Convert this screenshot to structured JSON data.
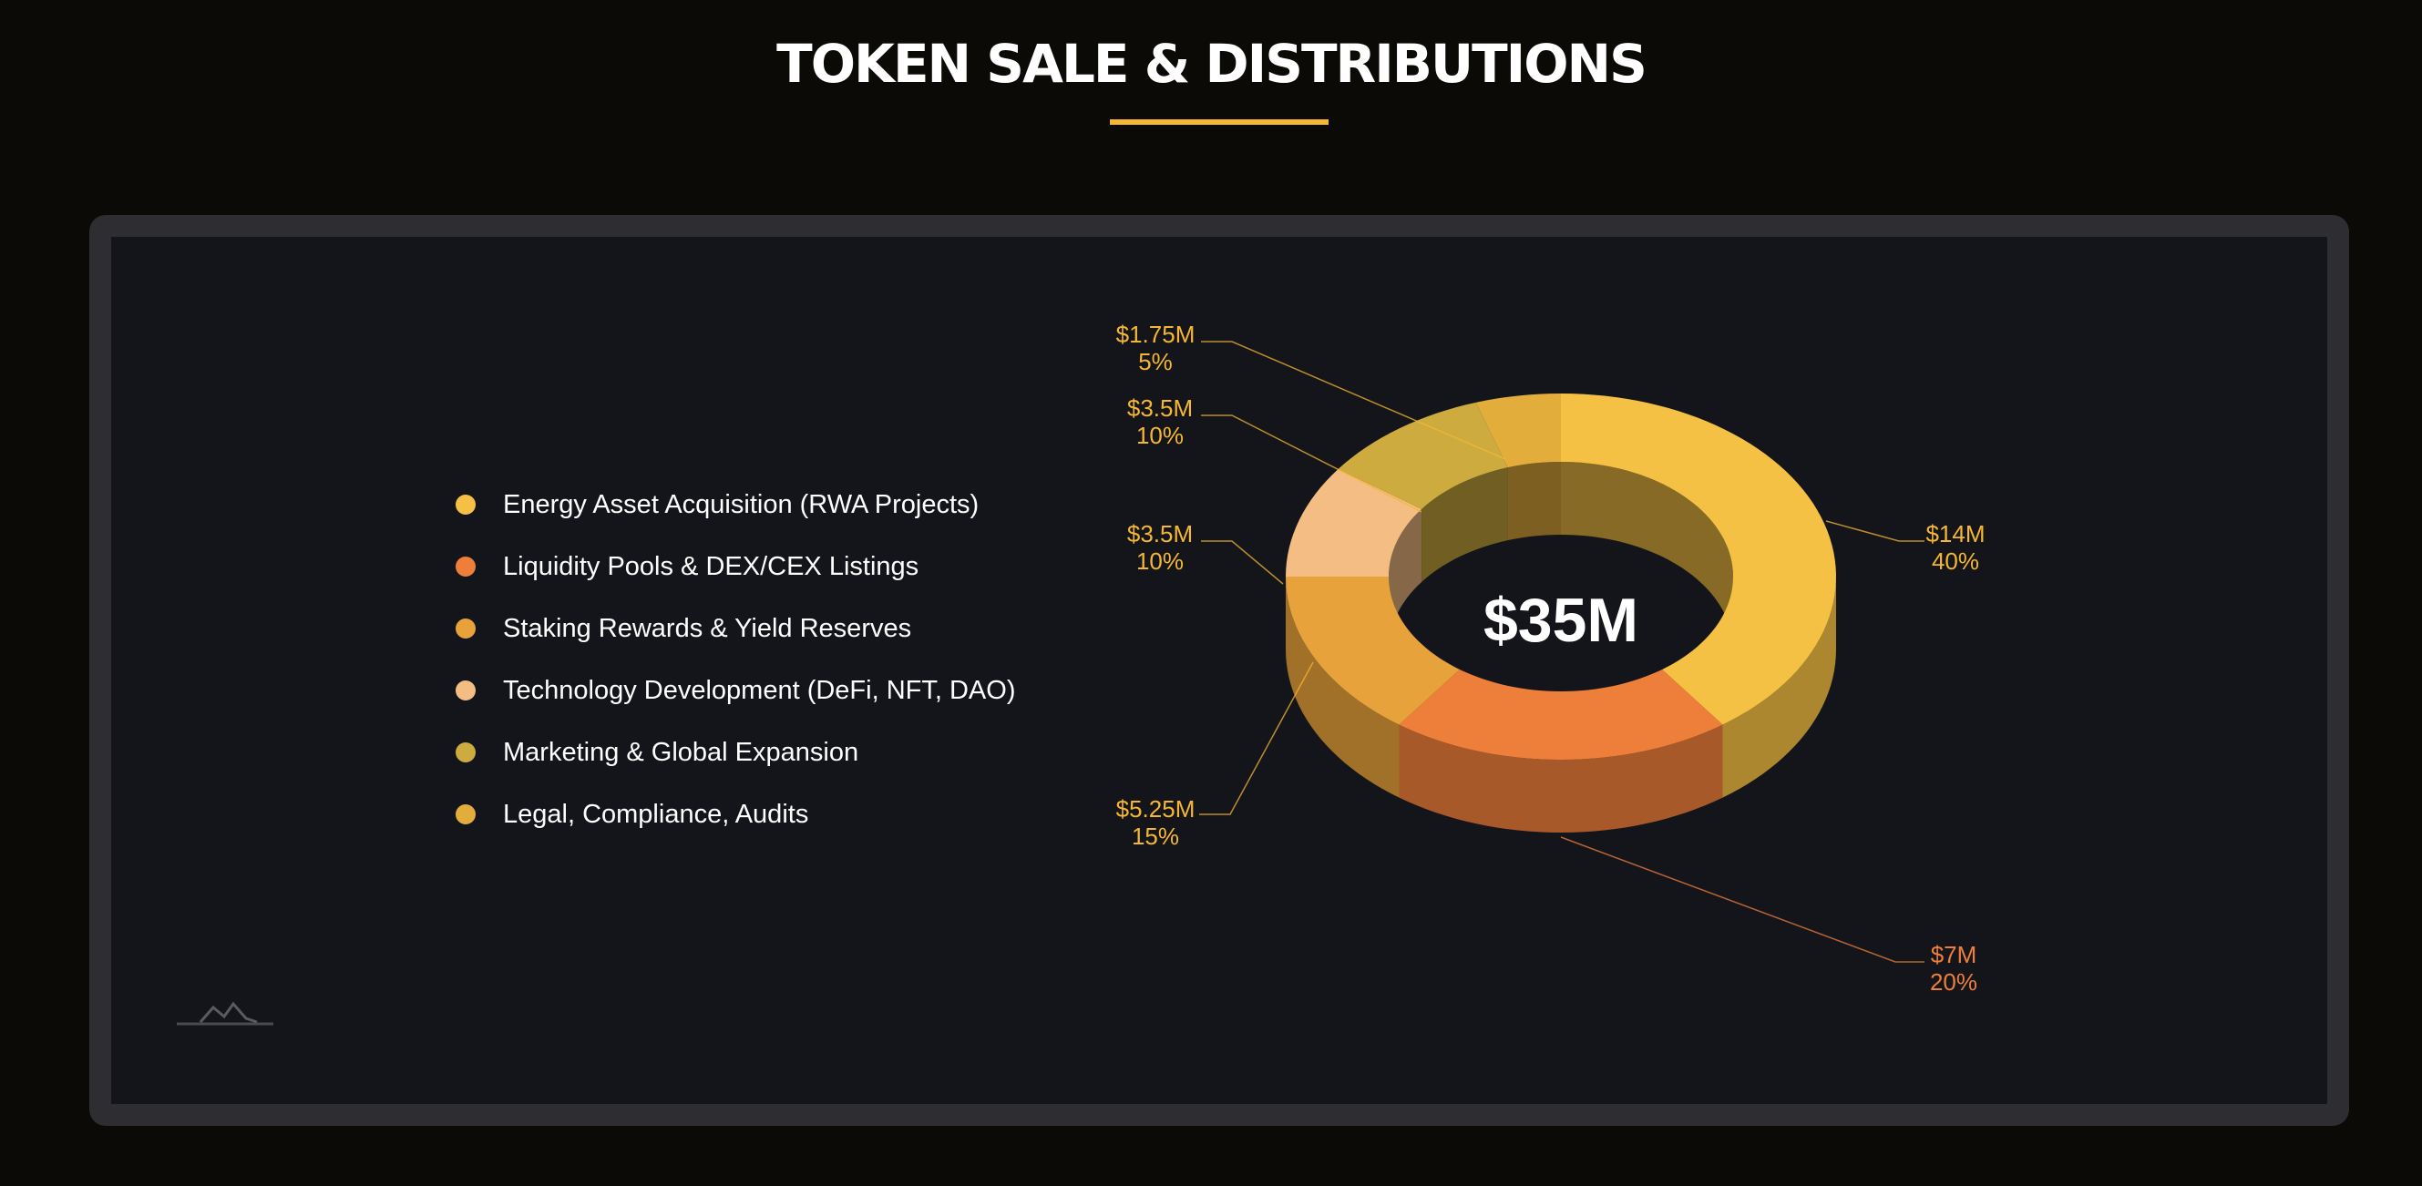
{
  "page": {
    "title": "TOKEN SALE & DISTRIBUTIONS"
  },
  "colors": {
    "background": "#0b0a07",
    "card": "#14151a",
    "card_border": "#2d2d32",
    "accent": "#f5b731"
  },
  "chart_data": {
    "type": "pie",
    "variant": "3d-donut",
    "center_label": "$35M",
    "total": 35,
    "unit": "$M",
    "legend_position": "left",
    "slices": [
      {
        "label": "Energy Asset Acquisition (RWA Projects)",
        "value": 14,
        "amount": "$14M",
        "percent": "40%",
        "color": "#f5c144",
        "label_color": "#f5b731"
      },
      {
        "label": "Liquidity Pools & DEX/CEX Listings",
        "value": 7,
        "amount": "$7M",
        "percent": "20%",
        "color": "#ee7f3b",
        "label_color": "#ee7f3b"
      },
      {
        "label": "Staking Rewards & Yield Reserves",
        "value": 5.25,
        "amount": "$5.25M",
        "percent": "15%",
        "color": "#e8a23b",
        "label_color": "#f5b731"
      },
      {
        "label": "Technology Development (DeFi, NFT, DAO)",
        "value": 3.5,
        "amount": "$3.5M",
        "percent": "10%",
        "color": "#f3bd83",
        "label_color": "#f5b731"
      },
      {
        "label": "Marketing & Global Expansion",
        "value": 3.5,
        "amount": "$3.5M",
        "percent": "10%",
        "color": "#cdab3f",
        "label_color": "#f5b731"
      },
      {
        "label": "Legal, Compliance, Audits",
        "value": 1.75,
        "amount": "$1.75M",
        "percent": "5%",
        "color": "#e3ad3c",
        "label_color": "#f5b731"
      }
    ]
  }
}
